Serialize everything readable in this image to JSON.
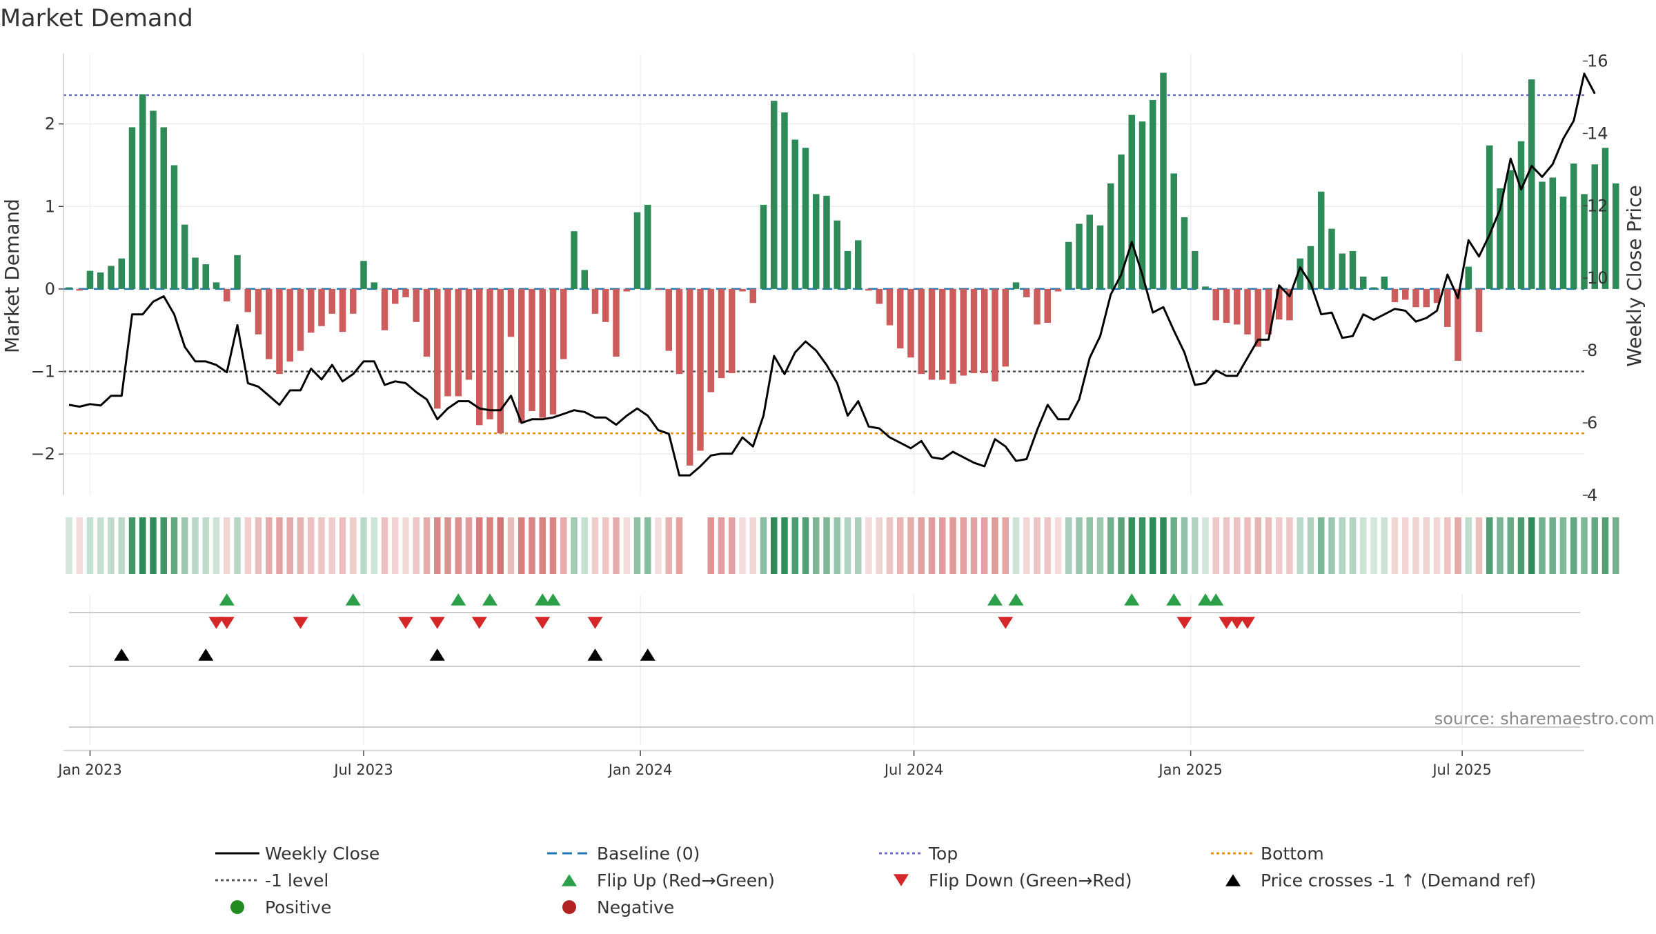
{
  "chart_data": {
    "type": "bar",
    "title": "Market Demand",
    "ylabel": "Market Demand",
    "y2label": "Weekly Close Price",
    "xlabel": "",
    "ylim": [
      -2.5,
      2.85
    ],
    "y2lim": [
      4,
      16.2
    ],
    "yticks": [
      -2,
      -1,
      0,
      1,
      2
    ],
    "y2ticks": [
      4,
      6,
      8,
      10,
      12,
      14,
      16
    ],
    "x_start_week_offset": -2,
    "xticks": [
      {
        "label": "Jan 2023",
        "week": 0
      },
      {
        "label": "Jul 2023",
        "week": 26
      },
      {
        "label": "Jan 2024",
        "week": 52.3
      },
      {
        "label": "Jul 2024",
        "week": 78.3
      },
      {
        "label": "Jan 2025",
        "week": 104.6
      },
      {
        "label": "Jul 2025",
        "week": 130.4
      }
    ],
    "ytick_labels": [
      "−2",
      "−1",
      "0",
      "1",
      "2"
    ],
    "y2tick_labels": [
      "4",
      "6",
      "8",
      "10",
      "12",
      "14",
      "16"
    ],
    "reference_lines": {
      "top": 2.35,
      "bottom": -1.75,
      "minus_one": -1,
      "baseline": 0
    },
    "demand": [
      0.02,
      -0.02,
      0.22,
      0.2,
      0.28,
      0.37,
      1.96,
      2.36,
      2.16,
      1.96,
      1.5,
      0.78,
      0.38,
      0.3,
      0.08,
      -0.15,
      0.41,
      -0.28,
      -0.55,
      -0.85,
      -1.03,
      -0.88,
      -0.75,
      -0.53,
      -0.45,
      -0.3,
      -0.52,
      -0.3,
      0.34,
      0.08,
      -0.5,
      -0.18,
      -0.1,
      -0.4,
      -0.82,
      -1.45,
      -1.3,
      -1.3,
      -1.1,
      -1.65,
      -1.58,
      -1.75,
      -0.58,
      -1.62,
      -1.48,
      -1.56,
      -1.52,
      -0.85,
      0.7,
      0.23,
      -0.3,
      -0.4,
      -0.82,
      -0.03,
      0.93,
      1.02,
      -0.01,
      -0.75,
      -1.03,
      -2.14,
      -1.96,
      -1.25,
      -1.08,
      -1.02,
      -0.03,
      -0.17,
      1.02,
      2.28,
      2.14,
      1.81,
      1.71,
      1.15,
      1.13,
      0.83,
      0.46,
      0.59,
      -0.02,
      -0.18,
      -0.44,
      -0.72,
      -0.83,
      -1.03,
      -1.1,
      -1.1,
      -1.15,
      -1.05,
      -1.02,
      -1.02,
      -1.12,
      -0.94,
      0.08,
      -0.1,
      -0.43,
      -0.41,
      -0.03,
      0.57,
      0.79,
      0.9,
      0.77,
      1.28,
      1.63,
      2.11,
      2.03,
      2.29,
      2.62,
      1.4,
      0.87,
      0.46,
      0.03,
      -0.38,
      -0.41,
      -0.43,
      -0.55,
      -0.7,
      -0.55,
      -0.37,
      -0.38,
      0.37,
      0.52,
      1.18,
      0.73,
      0.43,
      0.46,
      0.15,
      0.02,
      0.15,
      -0.16,
      -0.13,
      -0.22,
      -0.22,
      -0.17,
      -0.46,
      -0.87,
      0.27,
      -0.52,
      1.74,
      1.22,
      1.44,
      1.79,
      2.54,
      1.3,
      1.35,
      1.12,
      1.52,
      1.15,
      1.51,
      1.71,
      1.28
    ],
    "price": [
      6.5,
      6.45,
      6.52,
      6.48,
      6.75,
      6.75,
      9.0,
      9.0,
      9.35,
      9.5,
      9.0,
      8.1,
      7.7,
      7.7,
      7.6,
      7.4,
      8.7,
      7.1,
      7.0,
      6.75,
      6.5,
      6.9,
      6.9,
      7.5,
      7.2,
      7.6,
      7.15,
      7.35,
      7.7,
      7.7,
      7.05,
      7.15,
      7.1,
      6.85,
      6.65,
      6.1,
      6.4,
      6.6,
      6.6,
      6.4,
      6.35,
      6.35,
      6.75,
      6.0,
      6.1,
      6.1,
      6.15,
      6.25,
      6.35,
      6.3,
      6.15,
      6.15,
      5.95,
      6.2,
      6.4,
      6.2,
      5.8,
      5.7,
      4.55,
      4.55,
      4.8,
      5.1,
      5.15,
      5.15,
      5.6,
      5.35,
      6.2,
      7.85,
      7.35,
      7.95,
      8.25,
      8.0,
      7.6,
      7.1,
      6.2,
      6.6,
      5.9,
      5.85,
      5.6,
      5.45,
      5.3,
      5.5,
      5.05,
      5.0,
      5.2,
      5.05,
      4.9,
      4.8,
      5.55,
      5.35,
      4.95,
      5.0,
      5.8,
      6.5,
      6.1,
      6.1,
      6.65,
      7.8,
      8.4,
      9.55,
      10.1,
      11.0,
      10.1,
      9.05,
      9.2,
      8.55,
      7.95,
      7.05,
      7.1,
      7.45,
      7.3,
      7.3,
      7.8,
      8.3,
      8.3,
      9.8,
      9.5,
      10.3,
      9.85,
      9.0,
      9.05,
      8.35,
      8.4,
      9.0,
      8.85,
      9.0,
      9.15,
      9.1,
      8.8,
      8.9,
      9.1,
      10.1,
      9.45,
      11.05,
      10.6,
      11.2,
      11.9,
      13.3,
      12.45,
      13.1,
      12.8,
      13.15,
      13.85,
      14.35,
      15.65,
      15.1
    ],
    "heat_gaps": [
      59,
      60
    ],
    "flip_up_weeks": [
      13,
      25,
      35,
      38,
      43,
      44,
      86,
      88,
      99,
      103,
      106,
      107
    ],
    "flip_down_weeks": [
      12,
      13,
      20,
      30,
      33,
      37,
      43,
      48,
      87,
      104,
      108,
      109,
      110
    ],
    "price_cross_weeks": [
      3,
      11,
      33,
      48,
      53
    ],
    "legend": [
      {
        "label": "Weekly Close",
        "marker": "line-solid",
        "color": "#000000"
      },
      {
        "label": "Baseline (0)",
        "marker": "line-dash",
        "color": "#1f77b4"
      },
      {
        "label": "Top",
        "marker": "line-dot",
        "color": "#6a6acd"
      },
      {
        "label": "Bottom",
        "marker": "line-dot",
        "color": "#e8901c"
      },
      {
        "label": "-1 level",
        "marker": "line-dot",
        "color": "#555555"
      },
      {
        "label": "Flip Up (Red→Green)",
        "marker": "triangle-up",
        "color": "#2ca049"
      },
      {
        "label": "Flip Down (Green→Red)",
        "marker": "triangle-down",
        "color": "#d62728"
      },
      {
        "label": "Price crosses -1 ↑ (Demand ref)",
        "marker": "triangle-up",
        "color": "#000000"
      },
      {
        "label": "Positive",
        "marker": "dot",
        "color": "#228b22"
      },
      {
        "label": "Negative",
        "marker": "dot",
        "color": "#b22222"
      }
    ],
    "colors": {
      "positive": "#2e8b57",
      "negative": "#cd5c5c",
      "price": "#000000",
      "flip_up": "#2ca049",
      "flip_down": "#d62728",
      "cross": "#000000"
    }
  },
  "source_text": "source: sharemaestro.com"
}
